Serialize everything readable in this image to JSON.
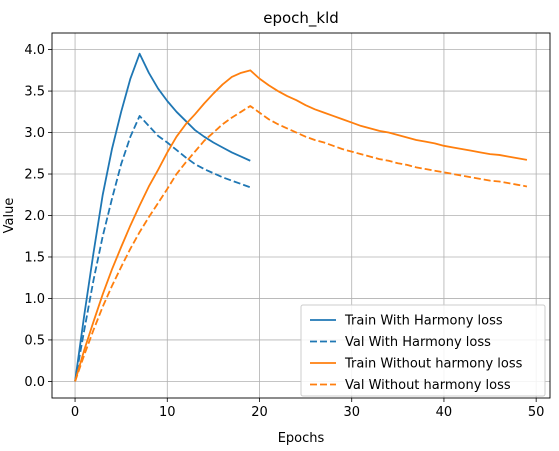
{
  "chart_data": {
    "type": "line",
    "title": "epoch_kld",
    "xlabel": "Epochs",
    "ylabel": "Value",
    "xlim": [
      -2.5,
      51.5
    ],
    "ylim": [
      -0.2,
      4.2
    ],
    "xticks": [
      "0",
      "10",
      "20",
      "30",
      "40",
      "50"
    ],
    "yticks": [
      "0.0",
      "0.5",
      "1.0",
      "1.5",
      "2.0",
      "2.5",
      "3.0",
      "3.5",
      "4.0"
    ],
    "grid": true,
    "legend_position": "lower-right",
    "series": [
      {
        "name": "Train With Harmony loss",
        "color": "#1f77b4",
        "linestyle": "solid",
        "x": [
          0,
          1,
          2,
          3,
          4,
          5,
          6,
          7,
          8,
          9,
          10,
          11,
          12,
          13,
          14,
          15,
          16,
          17,
          18,
          19
        ],
        "y": [
          0.0,
          0.8,
          1.55,
          2.25,
          2.8,
          3.25,
          3.65,
          3.95,
          3.72,
          3.53,
          3.38,
          3.25,
          3.14,
          3.03,
          2.95,
          2.88,
          2.82,
          2.76,
          2.71,
          2.66
        ]
      },
      {
        "name": "Val With Harmony loss",
        "color": "#1f77b4",
        "linestyle": "dashed",
        "x": [
          0,
          1,
          2,
          3,
          4,
          5,
          6,
          7,
          8,
          9,
          10,
          11,
          12,
          13,
          14,
          15,
          16,
          17,
          18,
          19
        ],
        "y": [
          0.0,
          0.62,
          1.22,
          1.75,
          2.2,
          2.62,
          2.95,
          3.2,
          3.08,
          2.96,
          2.88,
          2.79,
          2.7,
          2.62,
          2.56,
          2.51,
          2.46,
          2.42,
          2.38,
          2.34
        ]
      },
      {
        "name": "Train Without harmony loss",
        "color": "#ff7f0e",
        "linestyle": "solid",
        "x": [
          0,
          1,
          2,
          3,
          4,
          5,
          6,
          7,
          8,
          9,
          10,
          11,
          12,
          13,
          14,
          15,
          16,
          17,
          18,
          19,
          20,
          21,
          22,
          23,
          24,
          25,
          26,
          27,
          28,
          29,
          30,
          31,
          32,
          33,
          34,
          35,
          36,
          37,
          38,
          39,
          40,
          41,
          42,
          43,
          44,
          45,
          46,
          47,
          48,
          49
        ],
        "y": [
          0.0,
          0.38,
          0.72,
          1.05,
          1.35,
          1.62,
          1.88,
          2.12,
          2.35,
          2.55,
          2.76,
          2.95,
          3.1,
          3.22,
          3.35,
          3.47,
          3.58,
          3.67,
          3.72,
          3.75,
          3.65,
          3.57,
          3.5,
          3.44,
          3.39,
          3.33,
          3.28,
          3.24,
          3.2,
          3.16,
          3.12,
          3.08,
          3.05,
          3.02,
          3.0,
          2.97,
          2.94,
          2.91,
          2.89,
          2.87,
          2.84,
          2.82,
          2.8,
          2.78,
          2.76,
          2.74,
          2.73,
          2.71,
          2.69,
          2.67
        ]
      },
      {
        "name": "Val Without harmony loss",
        "color": "#ff7f0e",
        "linestyle": "dashed",
        "x": [
          0,
          1,
          2,
          3,
          4,
          5,
          6,
          7,
          8,
          9,
          10,
          11,
          12,
          13,
          14,
          15,
          16,
          17,
          18,
          19,
          20,
          21,
          22,
          23,
          24,
          25,
          26,
          27,
          28,
          29,
          30,
          31,
          32,
          33,
          34,
          35,
          36,
          37,
          38,
          39,
          40,
          41,
          42,
          43,
          44,
          45,
          46,
          47,
          48,
          49
        ],
        "y": [
          0.0,
          0.32,
          0.62,
          0.9,
          1.15,
          1.38,
          1.6,
          1.8,
          1.98,
          2.15,
          2.32,
          2.5,
          2.64,
          2.77,
          2.9,
          3.0,
          3.1,
          3.18,
          3.25,
          3.32,
          3.24,
          3.16,
          3.1,
          3.05,
          3.0,
          2.95,
          2.91,
          2.88,
          2.84,
          2.8,
          2.77,
          2.74,
          2.71,
          2.68,
          2.66,
          2.63,
          2.61,
          2.58,
          2.56,
          2.54,
          2.52,
          2.5,
          2.48,
          2.46,
          2.44,
          2.42,
          2.41,
          2.39,
          2.37,
          2.35
        ]
      }
    ]
  }
}
